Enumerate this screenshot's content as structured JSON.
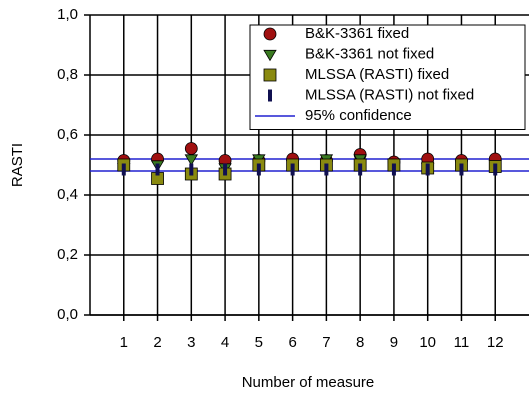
{
  "chart_data": {
    "type": "scatter",
    "xlabel": "Number of measure",
    "ylabel": "RASTI",
    "x": [
      1,
      2,
      3,
      4,
      5,
      6,
      7,
      8,
      9,
      10,
      11,
      12
    ],
    "xlim": [
      0,
      13
    ],
    "xticks": [
      1,
      2,
      3,
      4,
      5,
      6,
      7,
      8,
      9,
      10,
      11,
      12
    ],
    "ylim": [
      0,
      1
    ],
    "yticks": [
      {
        "value": 0,
        "label": "0,0"
      },
      {
        "value": 0.2,
        "label": "0,2"
      },
      {
        "value": 0.4,
        "label": "0,4"
      },
      {
        "value": 0.6,
        "label": "0,6"
      },
      {
        "value": 0.8,
        "label": "0,8"
      },
      {
        "value": 1,
        "label": "1,0"
      }
    ],
    "grid": true,
    "legend": "upper right",
    "series": [
      {
        "name": "B&K-3361 fixed",
        "color": "#a01010",
        "marker": "circle",
        "values": [
          0.515,
          0.52,
          0.555,
          0.515,
          0.515,
          0.52,
          0.515,
          0.535,
          0.51,
          0.52,
          0.515,
          0.52
        ]
      },
      {
        "name": "B&K-3361 not fixed",
        "color": "#3a7a20",
        "marker": "triangle",
        "values": [
          0.49,
          0.5,
          0.52,
          0.49,
          0.52,
          0.5,
          0.52,
          0.52,
          0.505,
          0.49,
          0.5,
          0.5
        ]
      },
      {
        "name": "MLSSA (RASTI) fixed",
        "color": "#8a8a10",
        "marker": "square",
        "values": [
          0.5,
          0.455,
          0.47,
          0.47,
          0.5,
          0.5,
          0.5,
          0.5,
          0.5,
          0.49,
          0.5,
          0.495
        ]
      },
      {
        "name": "MLSSA (RASTI) not fixed",
        "color": "#101050",
        "marker": "bar",
        "values": [
          0.485,
          0.485,
          0.485,
          0.485,
          0.485,
          0.485,
          0.485,
          0.485,
          0.485,
          0.485,
          0.485,
          0.485
        ]
      }
    ],
    "confidence": {
      "name": "95% confidence",
      "color": "#2020d0",
      "values": [
        0.48,
        0.52
      ]
    }
  }
}
